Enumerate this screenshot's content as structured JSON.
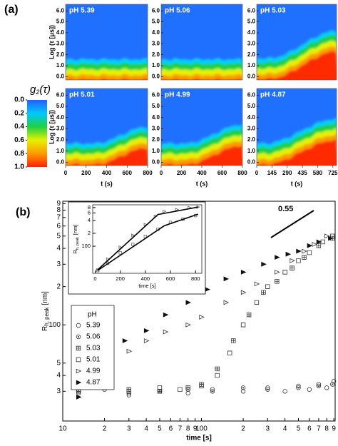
{
  "panel_labels": [
    "(a)",
    "(b)"
  ],
  "colorbar": {
    "title": "g",
    "title_sub": "2",
    "title_arg": "(τ)",
    "lim": [
      0,
      1
    ],
    "ticks": [
      {
        "value": 0,
        "label": "0.0"
      },
      {
        "value": 0.2,
        "label": "0.2"
      },
      {
        "value": 0.4,
        "label": "0.4"
      },
      {
        "value": 0.6,
        "label": "0.6"
      },
      {
        "value": 0.8,
        "label": "0.8"
      },
      {
        "value": 1,
        "label": "1.0"
      }
    ]
  },
  "chart_data": [
    {
      "type": "heatmap",
      "title": "pH 5.39",
      "ylabel": "Log (τ [μs])",
      "ylim": [
        -0.3,
        6.6
      ],
      "yticks": [
        {
          "value": 0,
          "label": "0.0"
        },
        {
          "value": 1,
          "label": "1.0"
        },
        {
          "value": 2,
          "label": "2.0"
        },
        {
          "value": 3,
          "label": "3.0"
        },
        {
          "value": 4,
          "label": "4.0"
        },
        {
          "value": 5,
          "label": "5.0"
        },
        {
          "value": 6,
          "label": "6.0"
        }
      ]
    },
    {
      "type": "heatmap",
      "title": "pH 5.06",
      "ylim": [
        -0.3,
        6.6
      ],
      "yticks": [
        {
          "value": 0,
          "label": "0.0"
        },
        {
          "value": 1,
          "label": "1.0"
        },
        {
          "value": 2,
          "label": "2.0"
        },
        {
          "value": 3,
          "label": "3.0"
        },
        {
          "value": 4,
          "label": "4.0"
        },
        {
          "value": 5,
          "label": "5.0"
        },
        {
          "value": 6,
          "label": "6.0"
        }
      ]
    },
    {
      "type": "heatmap",
      "title": "pH 5.03",
      "ylim": [
        -0.3,
        6.6
      ],
      "yticks": [
        {
          "value": 0,
          "label": "0.0"
        },
        {
          "value": 1,
          "label": "1.0"
        },
        {
          "value": 2,
          "label": "2.0"
        },
        {
          "value": 3,
          "label": "3.0"
        },
        {
          "value": 4,
          "label": "4.0"
        },
        {
          "value": 5,
          "label": "5.0"
        },
        {
          "value": 6,
          "label": "6.0"
        }
      ]
    },
    {
      "type": "heatmap",
      "title": "pH 5.01",
      "ylabel": "Log (τ [μs])",
      "xlabel": "t (s)",
      "ylim": [
        -0.3,
        6.6
      ],
      "xlim": [
        0,
        800
      ],
      "xticks": [
        0,
        200,
        400,
        600,
        800
      ],
      "yticks": [
        {
          "value": 0,
          "label": "0.0"
        },
        {
          "value": 1,
          "label": "1.0"
        },
        {
          "value": 2,
          "label": "2.0"
        },
        {
          "value": 3,
          "label": "3.0"
        },
        {
          "value": 4,
          "label": "4.0"
        },
        {
          "value": 5,
          "label": "5.0"
        },
        {
          "value": 6,
          "label": "6.0"
        }
      ]
    },
    {
      "type": "heatmap",
      "title": "pH 4.99",
      "xlabel": "t (s)",
      "ylim": [
        -0.3,
        6.6
      ],
      "xlim": [
        0,
        800
      ],
      "xticks": [
        0,
        200,
        400,
        600,
        800
      ],
      "yticks": [
        {
          "value": 0,
          "label": "0.0"
        },
        {
          "value": 1,
          "label": "1.0"
        },
        {
          "value": 2,
          "label": "2.0"
        },
        {
          "value": 3,
          "label": "3.0"
        },
        {
          "value": 4,
          "label": "4.0"
        },
        {
          "value": 5,
          "label": "5.0"
        },
        {
          "value": 6,
          "label": "6.0"
        }
      ]
    },
    {
      "type": "heatmap",
      "title": "pH 4.87",
      "xlabel": "t (s)",
      "ylim": [
        -0.3,
        6.6
      ],
      "xlim": [
        0,
        760
      ],
      "xticks": [
        0,
        145,
        290,
        435,
        580,
        725
      ],
      "yticks": [
        {
          "value": 0,
          "label": "0.0"
        },
        {
          "value": 1,
          "label": "1.0"
        },
        {
          "value": 2,
          "label": "2.0"
        },
        {
          "value": 3,
          "label": "3.0"
        },
        {
          "value": 4,
          "label": "4.0"
        },
        {
          "value": 5,
          "label": "5.0"
        },
        {
          "value": 6,
          "label": "6.0"
        }
      ]
    },
    {
      "type": "scatter",
      "xlabel": "time [s]",
      "ylabel": {
        "main": "R",
        "sub": "h, peak",
        "unit": "[nm]"
      },
      "log_x": true,
      "log_y": true,
      "xlim": [
        10,
        920
      ],
      "ylim": [
        17.5,
        940
      ],
      "xticks": [
        10,
        {
          "value": 20,
          "label": "2"
        },
        {
          "value": 30,
          "label": "3"
        },
        {
          "value": 40,
          "label": "4"
        },
        {
          "value": 50,
          "label": "5"
        },
        {
          "value": 60,
          "label": "6"
        },
        {
          "value": 70,
          "label": "7"
        },
        {
          "value": 80,
          "label": "8"
        },
        {
          "value": 90,
          "label": "9"
        },
        100,
        {
          "value": 200,
          "label": "2"
        },
        {
          "value": 300,
          "label": "3"
        },
        {
          "value": 400,
          "label": "4"
        },
        {
          "value": 500,
          "label": "5"
        },
        {
          "value": 600,
          "label": "6"
        },
        {
          "value": 700,
          "label": "7"
        },
        {
          "value": 800,
          "label": "8"
        },
        {
          "value": 900,
          "label": "9"
        }
      ],
      "yticks": [
        {
          "value": 30,
          "label": "3"
        },
        {
          "value": 40,
          "label": "4"
        },
        {
          "value": 50,
          "label": "5"
        },
        100,
        {
          "value": 200,
          "label": "2"
        },
        {
          "value": 300,
          "label": "3"
        },
        {
          "value": 400,
          "label": "4"
        },
        {
          "value": 500,
          "label": "5"
        },
        {
          "value": 600,
          "label": "6"
        },
        {
          "value": 700,
          "label": "7"
        },
        {
          "value": 800,
          "label": "8"
        },
        {
          "value": 900,
          "label": "9"
        }
      ],
      "annotation": "0.55",
      "legend_title": "pH",
      "series": [
        {
          "name": "5.39",
          "marker": "circle",
          "color": "#333333",
          "x": [
            13,
            20,
            30,
            50,
            80,
            120,
            200,
            300,
            400,
            500,
            600,
            700,
            800,
            900
          ],
          "values": [
            29,
            31,
            28,
            30,
            29,
            31,
            30,
            32,
            30,
            33,
            31,
            34,
            32,
            36
          ]
        },
        {
          "name": "5.06",
          "marker": "circle-dot",
          "color": "#333333",
          "x": [
            13,
            20,
            30,
            50,
            80,
            120,
            200,
            300,
            500,
            700,
            880
          ],
          "values": [
            30,
            32,
            29,
            30,
            31,
            30,
            32,
            31,
            32,
            33,
            34
          ]
        },
        {
          "name": "5.03",
          "marker": "square-cross",
          "color": "#333333",
          "x": [
            13,
            20,
            30,
            50,
            80,
            100,
            130,
            170,
            220,
            280,
            350,
            450,
            550,
            700,
            880
          ],
          "values": [
            30,
            32,
            31,
            30,
            32,
            34,
            45,
            75,
            120,
            180,
            220,
            280,
            340,
            420,
            480
          ]
        },
        {
          "name": "5.01",
          "marker": "square",
          "color": "#333333",
          "x": [
            13,
            20,
            30,
            50,
            70,
            100,
            130,
            160,
            200,
            250,
            300,
            400,
            500,
            600,
            750,
            880
          ],
          "values": [
            32,
            33,
            30,
            32,
            31,
            33,
            40,
            60,
            100,
            150,
            200,
            260,
            320,
            370,
            450,
            500
          ]
        },
        {
          "name": "4.99",
          "marker": "triangle",
          "color": "#333333",
          "x": [
            13,
            20,
            30,
            40,
            55,
            80,
            100,
            150,
            200,
            250,
            350,
            450,
            550,
            650,
            800
          ],
          "values": [
            33,
            45,
            62,
            75,
            88,
            100,
            115,
            150,
            180,
            210,
            260,
            320,
            380,
            430,
            500
          ]
        },
        {
          "name": "4.87",
          "marker": "triangle-filled",
          "color": "#111111",
          "x": [
            13,
            20,
            28,
            40,
            55,
            80,
            110,
            150,
            200,
            280,
            350,
            420,
            500,
            600,
            700,
            850
          ],
          "values": [
            27,
            55,
            75,
            90,
            120,
            150,
            190,
            230,
            260,
            300,
            340,
            360,
            380,
            420,
            450,
            480
          ]
        }
      ]
    },
    {
      "type": "scatter",
      "xlabel": "time [s]",
      "ylabel": {
        "main": "R",
        "sub": "h, peak",
        "unit": "[nm]"
      },
      "log_y": true,
      "xlim": [
        -20,
        850
      ],
      "ylim": [
        23.3,
        927
      ],
      "xticks": [
        0,
        200,
        400,
        600,
        800
      ],
      "yticks": [
        100,
        {
          "value": 200,
          "label": "2"
        },
        {
          "value": 400,
          "label": "4"
        },
        {
          "value": 600,
          "label": "6"
        },
        {
          "value": 800,
          "label": "8"
        }
      ],
      "series": [
        {
          "marker": "triangle",
          "color": "#666666",
          "x": [
            20,
            100,
            200,
            300,
            400,
            480,
            550,
            650,
            750,
            820
          ],
          "values": [
            28,
            50,
            95,
            180,
            320,
            500,
            650,
            720,
            800,
            820
          ]
        },
        {
          "marker": "square",
          "color": "#666666",
          "x": [
            20,
            100,
            200,
            300,
            400,
            500,
            600,
            700,
            800
          ],
          "values": [
            27,
            40,
            70,
            110,
            170,
            250,
            360,
            430,
            520
          ]
        }
      ]
    }
  ]
}
